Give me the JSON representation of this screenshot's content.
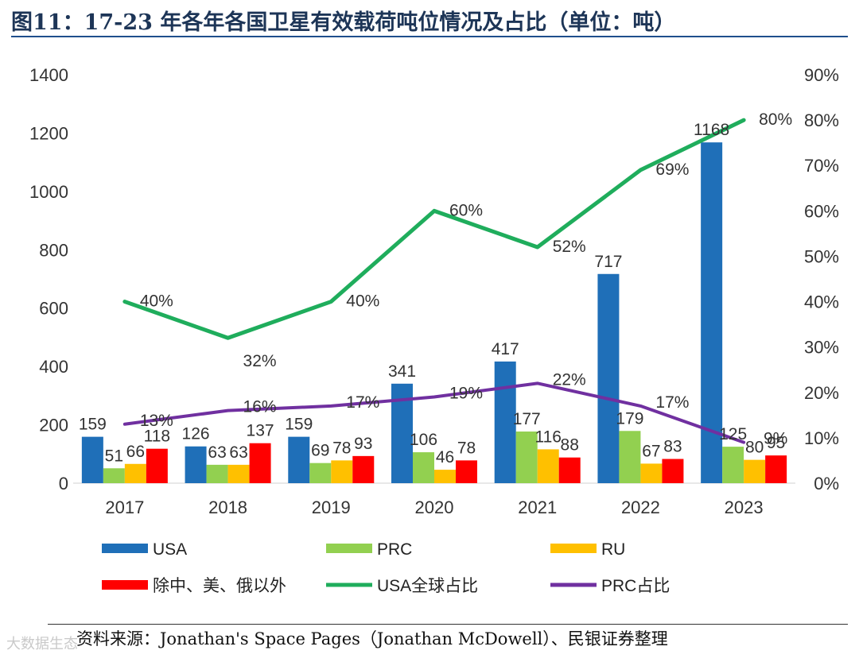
{
  "title": "图11：17-23 年各年各国卫星有效载荷吨位情况及占比（单位：吨）",
  "source": "资料来源：Jonathan's Space Pages（Jonathan McDowell）、民银证券整理",
  "watermark": "大数据生态",
  "colors": {
    "usa": "#1f6fb8",
    "prc": "#92d050",
    "ru": "#ffc000",
    "other": "#ff0000",
    "usa_share": "#1fad5c",
    "prc_share": "#7030a0"
  },
  "chart_data": {
    "type": "bar",
    "categories": [
      "2017",
      "2018",
      "2019",
      "2020",
      "2021",
      "2022",
      "2023"
    ],
    "series": [
      {
        "name": "USA",
        "kind": "bar",
        "axis": "left",
        "values": [
          159,
          126,
          159,
          341,
          417,
          717,
          1168
        ]
      },
      {
        "name": "PRC",
        "kind": "bar",
        "axis": "left",
        "values": [
          51,
          63,
          69,
          106,
          177,
          179,
          125
        ]
      },
      {
        "name": "RU",
        "kind": "bar",
        "axis": "left",
        "values": [
          66,
          63,
          78,
          46,
          116,
          67,
          80
        ]
      },
      {
        "name": "除中、美、俄以外",
        "kind": "bar",
        "axis": "left",
        "values": [
          118,
          137,
          93,
          78,
          88,
          83,
          95
        ]
      },
      {
        "name": "USA全球占比",
        "kind": "line",
        "axis": "right",
        "values": [
          40,
          32,
          40,
          60,
          52,
          69,
          80
        ],
        "labels": [
          "40%",
          "32%",
          "40%",
          "60%",
          "52%",
          "69%",
          "80%"
        ]
      },
      {
        "name": "PRC占比",
        "kind": "line",
        "axis": "right",
        "values": [
          13,
          16,
          17,
          19,
          22,
          17,
          9
        ],
        "labels": [
          "13%",
          "16%",
          "17%",
          "19%",
          "22%",
          "17%",
          "9%"
        ]
      }
    ],
    "ylim_left": [
      0,
      1400
    ],
    "yticks_left": [
      "0",
      "200",
      "400",
      "600",
      "800",
      "1000",
      "1200",
      "1400"
    ],
    "ylim_right": [
      0,
      90
    ],
    "yticks_right": [
      "0%",
      "10%",
      "20%",
      "30%",
      "40%",
      "50%",
      "60%",
      "70%",
      "80%",
      "90%"
    ],
    "grid": false,
    "legend_position": "bottom"
  }
}
